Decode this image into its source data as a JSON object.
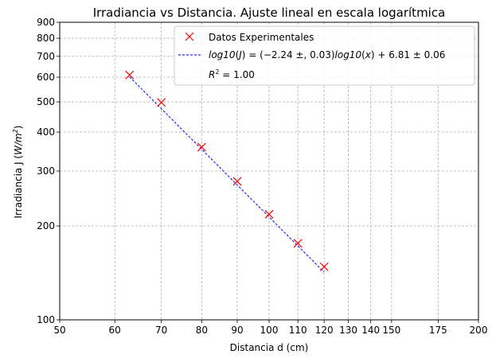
{
  "chart_data": {
    "type": "scatter",
    "title": "Irradiancia vs Distancia. Ajuste lineal en escala logarítmica",
    "xlabel": "Distancia d (cm)",
    "ylabel": "Irradiancia J (W/m²)",
    "ylabel_parts": {
      "pre": "Irradiancia J (",
      "mid": "W/m",
      "sup": "2",
      "post": ")"
    },
    "xscale": "log",
    "yscale": "log",
    "xlim": [
      50,
      200
    ],
    "ylim": [
      100,
      900
    ],
    "xticks": [
      50,
      60,
      70,
      80,
      90,
      100,
      110,
      120,
      130,
      140,
      150,
      175,
      200
    ],
    "yticks": [
      100,
      200,
      300,
      400,
      500,
      600,
      700,
      800,
      900
    ],
    "grid": true,
    "legend_placement": "top-right",
    "series": [
      {
        "name": "Datos Experimentales",
        "kind": "markers",
        "marker": "x",
        "color": "#ff0000",
        "x": [
          63,
          70,
          80,
          90,
          100,
          110,
          120
        ],
        "y": [
          610,
          498,
          358,
          278,
          218,
          176,
          148
        ]
      },
      {
        "name": "log10(J) = (−2.24 ±, 0.03)log10(x) + 6.81 ± 0.06",
        "kind": "line",
        "style": "dashed",
        "color": "#0000ff",
        "slope": -2.24,
        "intercept": 6.81,
        "x_range": [
          63,
          120
        ]
      }
    ],
    "legend": {
      "fit_label": {
        "a": "log10",
        "b": "(",
        "c": "J",
        "d": ") = (−2.24 ±, 0.03)",
        "e": "log10",
        "f": "(",
        "g": "x",
        "h": ") + 6.81 ± 0.06"
      },
      "r2_label": {
        "symbol": "R",
        "exp": "2",
        "rest": " = 1.00"
      }
    }
  }
}
